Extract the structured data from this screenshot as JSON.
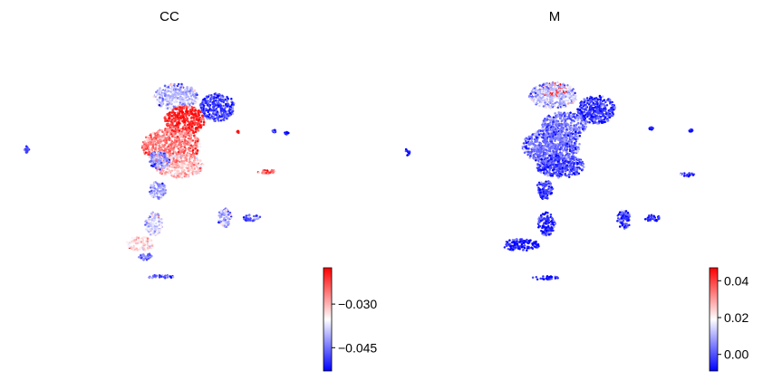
{
  "chart_data": [
    {
      "type": "scatter",
      "title": "CC",
      "xlabel": "",
      "ylabel": "",
      "grid": false,
      "axes_visible": false,
      "colormap": [
        "#0000ff",
        "#ffffff",
        "#ff0000"
      ],
      "colorbar": {
        "vmin": -0.053,
        "vmax": -0.0175,
        "ticks": [
          {
            "value": -0.03,
            "label": "−0.030"
          },
          {
            "value": -0.045,
            "label": "−0.045"
          }
        ]
      },
      "clusters": [
        {
          "name": "upper-lobe",
          "cx": 0.05,
          "cy": 0.87,
          "rx": 0.13,
          "ry": 0.11,
          "value": -0.04
        },
        {
          "name": "right-arm",
          "cx": 0.29,
          "cy": 0.78,
          "rx": 0.1,
          "ry": 0.12,
          "value": -0.049
        },
        {
          "name": "center-core",
          "cx": 0.1,
          "cy": 0.67,
          "rx": 0.12,
          "ry": 0.12,
          "value": -0.02
        },
        {
          "name": "middle-body",
          "cx": 0.02,
          "cy": 0.45,
          "rx": 0.17,
          "ry": 0.15,
          "value": -0.026
        },
        {
          "name": "lower-body",
          "cx": 0.07,
          "cy": 0.28,
          "rx": 0.14,
          "ry": 0.1,
          "value": -0.031
        },
        {
          "name": "lower-left-edge",
          "cx": -0.05,
          "cy": 0.33,
          "rx": 0.06,
          "ry": 0.08,
          "value": -0.042
        },
        {
          "name": "stem",
          "cx": -0.06,
          "cy": 0.08,
          "rx": 0.05,
          "ry": 0.08,
          "value": -0.042
        },
        {
          "name": "tail-upper",
          "cx": -0.08,
          "cy": -0.21,
          "rx": 0.05,
          "ry": 0.1,
          "value": -0.038
        },
        {
          "name": "tail-lower",
          "cx": -0.16,
          "cy": -0.38,
          "rx": 0.08,
          "ry": 0.06,
          "value": -0.033
        },
        {
          "name": "bottom-spot",
          "cx": -0.13,
          "cy": -0.49,
          "rx": 0.04,
          "ry": 0.03,
          "value": -0.044
        },
        {
          "name": "bottom-island",
          "cx": -0.04,
          "cy": -0.66,
          "rx": 0.08,
          "ry": 0.015,
          "value": -0.047
        },
        {
          "name": "left-island",
          "cx": -0.82,
          "cy": 0.42,
          "rx": 0.015,
          "ry": 0.03,
          "value": -0.048
        },
        {
          "name": "center-island-a",
          "cx": 0.33,
          "cy": -0.16,
          "rx": 0.04,
          "ry": 0.08,
          "value": -0.041
        },
        {
          "name": "center-island-b",
          "cx": 0.49,
          "cy": -0.16,
          "rx": 0.05,
          "ry": 0.03,
          "value": -0.047
        },
        {
          "name": "right-streak",
          "cx": 0.58,
          "cy": 0.23,
          "rx": 0.055,
          "ry": 0.018,
          "value": -0.024
        },
        {
          "name": "far-right-dot-a",
          "cx": 0.62,
          "cy": 0.58,
          "rx": 0.012,
          "ry": 0.012,
          "value": -0.05
        },
        {
          "name": "far-right-dot-b",
          "cx": 0.69,
          "cy": 0.56,
          "rx": 0.012,
          "ry": 0.01,
          "value": -0.052
        },
        {
          "name": "small-dot",
          "cx": 0.41,
          "cy": 0.57,
          "rx": 0.008,
          "ry": 0.008,
          "value": -0.019
        }
      ]
    },
    {
      "type": "scatter",
      "title": "M",
      "xlabel": "",
      "ylabel": "",
      "grid": false,
      "axes_visible": false,
      "colormap": [
        "#0000ff",
        "#ffffff",
        "#ff0000"
      ],
      "colorbar": {
        "vmin": -0.009,
        "vmax": 0.047,
        "ticks": [
          {
            "value": 0.04,
            "label": "0.04"
          },
          {
            "value": 0.02,
            "label": "0.02"
          },
          {
            "value": 0.0,
            "label": "0.00"
          }
        ]
      },
      "clusters": [
        {
          "name": "upper-lobe-hot",
          "cx": 0.03,
          "cy": 0.93,
          "rx": 0.08,
          "ry": 0.06,
          "value": 0.042
        },
        {
          "name": "upper-lobe-rim",
          "cx": 0.03,
          "cy": 0.88,
          "rx": 0.14,
          "ry": 0.11,
          "value": 0.012
        },
        {
          "name": "right-arm",
          "cx": 0.28,
          "cy": 0.76,
          "rx": 0.11,
          "ry": 0.12,
          "value": -0.004
        },
        {
          "name": "center-core",
          "cx": 0.09,
          "cy": 0.62,
          "rx": 0.13,
          "ry": 0.12,
          "value": 0.004
        },
        {
          "name": "middle-body",
          "cx": 0.02,
          "cy": 0.45,
          "rx": 0.17,
          "ry": 0.15,
          "value": 0.003
        },
        {
          "name": "lower-body",
          "cx": 0.07,
          "cy": 0.28,
          "rx": 0.14,
          "ry": 0.1,
          "value": -0.002
        },
        {
          "name": "stem",
          "cx": -0.02,
          "cy": 0.08,
          "rx": 0.05,
          "ry": 0.08,
          "value": -0.003
        },
        {
          "name": "tail-upper",
          "cx": -0.01,
          "cy": -0.21,
          "rx": 0.05,
          "ry": 0.1,
          "value": -0.005
        },
        {
          "name": "tail-lower",
          "cx": -0.16,
          "cy": -0.39,
          "rx": 0.11,
          "ry": 0.05,
          "value": -0.007
        },
        {
          "name": "bottom-island",
          "cx": -0.02,
          "cy": -0.67,
          "rx": 0.08,
          "ry": 0.015,
          "value": -0.007
        },
        {
          "name": "left-island",
          "cx": -0.82,
          "cy": 0.4,
          "rx": 0.015,
          "ry": 0.03,
          "value": -0.006
        },
        {
          "name": "center-island-a",
          "cx": 0.44,
          "cy": -0.17,
          "rx": 0.04,
          "ry": 0.08,
          "value": -0.002
        },
        {
          "name": "center-island-b",
          "cx": 0.61,
          "cy": -0.16,
          "rx": 0.05,
          "ry": 0.03,
          "value": -0.004
        },
        {
          "name": "right-streak",
          "cx": 0.81,
          "cy": 0.21,
          "rx": 0.045,
          "ry": 0.018,
          "value": -0.003
        },
        {
          "name": "far-right-dot-a",
          "cx": 0.83,
          "cy": 0.58,
          "rx": 0.012,
          "ry": 0.012,
          "value": -0.005
        },
        {
          "name": "far-right-dot-b",
          "cx": 0.6,
          "cy": 0.6,
          "rx": 0.012,
          "ry": 0.01,
          "value": -0.006
        }
      ]
    }
  ]
}
